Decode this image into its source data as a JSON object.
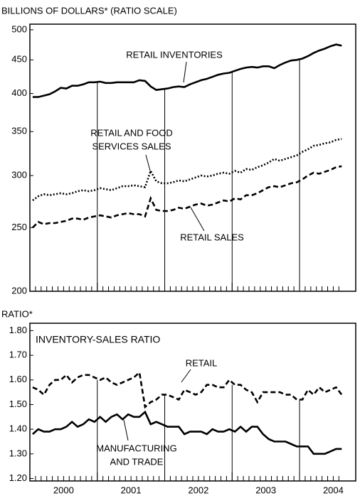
{
  "chart_data": [
    {
      "type": "line",
      "title": "BILLIONS OF DOLLARS* (RATIO SCALE)",
      "log_scale": true,
      "x": [
        "2000-01",
        "2000-02",
        "2000-03",
        "2000-04",
        "2000-05",
        "2000-06",
        "2000-07",
        "2000-08",
        "2000-09",
        "2000-10",
        "2000-11",
        "2000-12",
        "2001-01",
        "2001-02",
        "2001-03",
        "2001-04",
        "2001-05",
        "2001-06",
        "2001-07",
        "2001-08",
        "2001-09",
        "2001-10",
        "2001-11",
        "2001-12",
        "2002-01",
        "2002-02",
        "2002-03",
        "2002-04",
        "2002-05",
        "2002-06",
        "2002-07",
        "2002-08",
        "2002-09",
        "2002-10",
        "2002-11",
        "2002-12",
        "2003-01",
        "2003-02",
        "2003-03",
        "2003-04",
        "2003-05",
        "2003-06",
        "2003-07",
        "2003-08",
        "2003-09",
        "2003-10",
        "2003-11",
        "2003-12",
        "2004-01",
        "2004-02",
        "2004-03",
        "2004-04",
        "2004-05",
        "2004-06",
        "2004-07",
        "2004-08"
      ],
      "xlim": [
        "2000-01",
        "2004-10"
      ],
      "ylim": [
        200,
        510
      ],
      "yticks": [
        200,
        250,
        300,
        350,
        400,
        450,
        500
      ],
      "series": [
        {
          "name": "RETAIL INVENTORIES",
          "color": "#000000",
          "dash": "solid",
          "values": [
            395,
            395,
            397,
            399,
            403,
            408,
            407,
            411,
            411,
            413,
            416,
            416,
            417,
            415,
            415,
            416,
            416,
            416,
            416,
            419,
            418,
            410,
            405,
            406,
            407,
            409,
            410,
            409,
            413,
            416,
            419,
            421,
            424,
            427,
            429,
            430,
            433,
            436,
            438,
            439,
            438,
            440,
            440,
            437,
            442,
            446,
            449,
            450,
            452,
            456,
            461,
            465,
            468,
            472,
            475,
            473
          ]
        },
        {
          "name_lines": [
            "RETAIL AND FOOD",
            "SERVICES SALES"
          ],
          "color": "#000000",
          "dash": "dotted",
          "values": [
            275,
            279,
            281,
            280,
            281,
            282,
            281,
            282,
            284,
            285,
            284,
            285,
            287,
            286,
            285,
            287,
            289,
            289,
            290,
            289,
            288,
            305,
            294,
            292,
            292,
            293,
            295,
            294,
            296,
            298,
            300,
            299,
            300,
            302,
            303,
            302,
            305,
            303,
            307,
            306,
            309,
            311,
            314,
            318,
            316,
            318,
            320,
            322,
            326,
            329,
            333,
            334,
            336,
            337,
            340,
            341
          ]
        },
        {
          "name": "RETAIL SALES",
          "color": "#000000",
          "dash": "dashed",
          "values": [
            250,
            255,
            253,
            254,
            254,
            255,
            256,
            258,
            258,
            257,
            259,
            260,
            261,
            260,
            259,
            261,
            262,
            263,
            262,
            262,
            260,
            277,
            266,
            265,
            265,
            266,
            268,
            267,
            269,
            271,
            272,
            270,
            271,
            273,
            275,
            274,
            277,
            276,
            280,
            280,
            282,
            285,
            288,
            289,
            288,
            290,
            292,
            293,
            296,
            300,
            303,
            302,
            304,
            306,
            309,
            310
          ]
        }
      ]
    },
    {
      "type": "line",
      "title": "RATIO*",
      "subtitle": "INVENTORY-SALES RATIO",
      "x": [
        "2000-01",
        "2000-02",
        "2000-03",
        "2000-04",
        "2000-05",
        "2000-06",
        "2000-07",
        "2000-08",
        "2000-09",
        "2000-10",
        "2000-11",
        "2000-12",
        "2001-01",
        "2001-02",
        "2001-03",
        "2001-04",
        "2001-05",
        "2001-06",
        "2001-07",
        "2001-08",
        "2001-09",
        "2001-10",
        "2001-11",
        "2001-12",
        "2002-01",
        "2002-02",
        "2002-03",
        "2002-04",
        "2002-05",
        "2002-06",
        "2002-07",
        "2002-08",
        "2002-09",
        "2002-10",
        "2002-11",
        "2002-12",
        "2003-01",
        "2003-02",
        "2003-03",
        "2003-04",
        "2003-05",
        "2003-06",
        "2003-07",
        "2003-08",
        "2003-09",
        "2003-10",
        "2003-11",
        "2003-12",
        "2004-01",
        "2004-02",
        "2004-03",
        "2004-04",
        "2004-05",
        "2004-06",
        "2004-07",
        "2004-08"
      ],
      "xlim": [
        "2000-01",
        "2004-10"
      ],
      "year_labels": [
        "2000",
        "2001",
        "2002",
        "2003",
        "2004"
      ],
      "ylim": [
        1.19,
        1.83
      ],
      "yticks": [
        {
          "value": 1.2,
          "label": "1.20"
        },
        {
          "value": 1.3,
          "label": "1.30"
        },
        {
          "value": 1.4,
          "label": "1.40"
        },
        {
          "value": 1.5,
          "label": "1.50"
        },
        {
          "value": 1.6,
          "label": "1.60"
        },
        {
          "value": 1.7,
          "label": "1.70"
        },
        {
          "value": 1.8,
          "label": "1.80"
        }
      ],
      "series": [
        {
          "name": "RETAIL",
          "color": "#000000",
          "dash": "dashed",
          "values": [
            1.57,
            1.56,
            1.54,
            1.58,
            1.6,
            1.6,
            1.62,
            1.59,
            1.61,
            1.62,
            1.62,
            1.61,
            1.6,
            1.61,
            1.59,
            1.58,
            1.59,
            1.6,
            1.61,
            1.63,
            1.49,
            1.51,
            1.52,
            1.54,
            1.54,
            1.53,
            1.52,
            1.56,
            1.55,
            1.54,
            1.55,
            1.58,
            1.58,
            1.57,
            1.57,
            1.6,
            1.58,
            1.58,
            1.56,
            1.55,
            1.51,
            1.55,
            1.55,
            1.55,
            1.55,
            1.54,
            1.54,
            1.52,
            1.52,
            1.56,
            1.54,
            1.57,
            1.55,
            1.56,
            1.57,
            1.54
          ]
        },
        {
          "name_lines": [
            "MANUFACTURING",
            "AND TRADE"
          ],
          "color": "#000000",
          "dash": "solid",
          "values": [
            1.38,
            1.4,
            1.39,
            1.39,
            1.4,
            1.4,
            1.41,
            1.43,
            1.41,
            1.42,
            1.44,
            1.43,
            1.45,
            1.43,
            1.45,
            1.46,
            1.44,
            1.46,
            1.45,
            1.45,
            1.47,
            1.42,
            1.43,
            1.42,
            1.41,
            1.41,
            1.41,
            1.38,
            1.39,
            1.39,
            1.39,
            1.38,
            1.4,
            1.39,
            1.39,
            1.4,
            1.39,
            1.41,
            1.39,
            1.41,
            1.41,
            1.38,
            1.36,
            1.35,
            1.35,
            1.35,
            1.34,
            1.33,
            1.33,
            1.33,
            1.3,
            1.3,
            1.3,
            1.31,
            1.32,
            1.32
          ]
        }
      ]
    }
  ]
}
